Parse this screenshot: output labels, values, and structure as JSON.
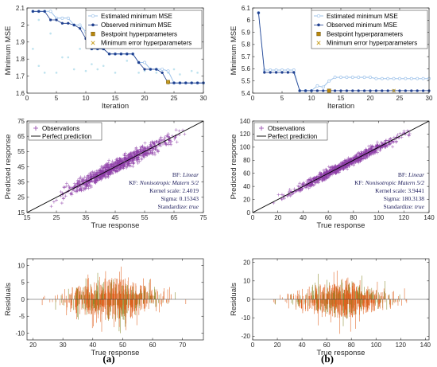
{
  "panel_labels": [
    "(a)",
    "(b)"
  ],
  "chart_data": [
    {
      "id": "a-mse",
      "type": "line",
      "column": "a",
      "xlabel": "Iteration",
      "ylabel": "Minimum MSE",
      "xlim": [
        0,
        30
      ],
      "ylim": [
        1.6,
        2.1
      ],
      "xticks": [
        0,
        5,
        10,
        15,
        20,
        25,
        30
      ],
      "yticks": [
        1.6,
        1.7,
        1.8,
        1.9,
        2.0,
        2.1
      ],
      "ytick_labels": [
        "1.6",
        "1.7",
        "1.8",
        "1.9",
        "2",
        "2.1"
      ],
      "legend_position": "top-right",
      "series": [
        {
          "name": "Estimated minimum MSE",
          "color": "#9fc3ea",
          "marker": "circle-open",
          "x": [
            1,
            2,
            3,
            4,
            5,
            6,
            7,
            8,
            9,
            10,
            11,
            12,
            13,
            14,
            15,
            16,
            17,
            18,
            19,
            20,
            21,
            22,
            23,
            24,
            25,
            26,
            27,
            28,
            29,
            30
          ],
          "y": [
            2.08,
            2.08,
            2.08,
            2.08,
            2.04,
            2.04,
            2.04,
            2.0,
            2.0,
            1.96,
            1.86,
            1.86,
            1.86,
            1.83,
            1.83,
            1.83,
            1.83,
            1.83,
            1.78,
            1.78,
            1.74,
            1.74,
            1.74,
            1.73,
            1.66,
            1.66,
            1.66,
            1.66,
            1.66,
            1.66
          ]
        },
        {
          "name": "Observed minimum MSE",
          "color": "#1f3f8f",
          "marker": "circle-filled",
          "x": [
            1,
            2,
            3,
            4,
            5,
            6,
            7,
            8,
            9,
            10,
            11,
            12,
            13,
            14,
            15,
            16,
            17,
            18,
            19,
            20,
            21,
            22,
            23,
            24,
            25,
            26,
            27,
            28,
            29,
            30
          ],
          "y": [
            2.08,
            2.08,
            2.08,
            2.03,
            2.03,
            2.01,
            2.01,
            2.0,
            1.98,
            1.92,
            1.86,
            1.86,
            1.86,
            1.83,
            1.83,
            1.83,
            1.83,
            1.83,
            1.78,
            1.74,
            1.74,
            1.74,
            1.72,
            1.66,
            1.66,
            1.66,
            1.66,
            1.66,
            1.66,
            1.66
          ]
        },
        {
          "name": "Bestpoint hyperparameters",
          "color": "#b8860b",
          "marker": "square",
          "x": [
            24
          ],
          "y": [
            1.665
          ]
        },
        {
          "name": "Minimum error hyperparameters",
          "color": "#c9a227",
          "marker": "x",
          "x": [
            24
          ],
          "y": [
            1.665
          ]
        }
      ],
      "scatter_noise": {
        "color": "#bfe3ef",
        "points": [
          [
            1,
            1.86
          ],
          [
            2,
            2.03
          ],
          [
            2,
            1.76
          ],
          [
            3,
            1.72
          ],
          [
            4,
            1.95
          ],
          [
            5,
            1.72
          ],
          [
            6,
            1.81
          ],
          [
            7,
            1.81
          ],
          [
            8,
            1.74
          ],
          [
            9,
            1.86
          ],
          [
            10,
            1.73
          ],
          [
            11,
            1.77
          ],
          [
            12,
            1.74
          ],
          [
            13,
            1.76
          ],
          [
            15,
            1.72
          ],
          [
            17,
            1.79
          ],
          [
            19,
            1.72
          ],
          [
            20,
            1.73
          ],
          [
            22,
            1.72
          ],
          [
            24,
            1.72
          ],
          [
            25,
            1.74
          ],
          [
            26,
            1.71
          ],
          [
            28,
            1.73
          ],
          [
            29,
            1.72
          ]
        ]
      }
    },
    {
      "id": "b-mse",
      "type": "line",
      "column": "b",
      "xlabel": "Iteration",
      "ylabel": "Minimum MSE",
      "xlim": [
        0,
        30
      ],
      "ylim": [
        5.4,
        6.1
      ],
      "xticks": [
        0,
        5,
        10,
        15,
        20,
        25,
        30
      ],
      "yticks": [
        5.4,
        5.5,
        5.6,
        5.7,
        5.8,
        5.9,
        6.0,
        6.1
      ],
      "ytick_labels": [
        "5.4",
        "5.5",
        "5.6",
        "5.7",
        "5.8",
        "5.9",
        "6",
        "6.1"
      ],
      "legend_position": "top-right",
      "series": [
        {
          "name": "Estimated minimum MSE",
          "color": "#9fc3ea",
          "marker": "circle-open",
          "x": [
            1,
            2,
            3,
            4,
            5,
            6,
            7,
            8,
            9,
            10,
            11,
            12,
            13,
            14,
            15,
            16,
            17,
            18,
            19,
            20,
            21,
            22,
            23,
            24,
            25,
            26,
            27,
            28,
            29,
            30
          ],
          "y": [
            6.06,
            5.59,
            5.59,
            5.59,
            5.59,
            5.59,
            5.59,
            5.42,
            5.42,
            5.42,
            5.46,
            5.45,
            5.5,
            5.53,
            5.53,
            5.53,
            5.53,
            5.53,
            5.53,
            5.53,
            5.52,
            5.52,
            5.52,
            5.52,
            5.52,
            5.52,
            5.52,
            5.52,
            5.52,
            5.52
          ]
        },
        {
          "name": "Observed minimum MSE",
          "color": "#1f3f8f",
          "marker": "circle-filled",
          "x": [
            1,
            2,
            3,
            4,
            5,
            6,
            7,
            8,
            9,
            10,
            11,
            12,
            13,
            14,
            15,
            16,
            17,
            18,
            19,
            20,
            21,
            22,
            23,
            24,
            25,
            26,
            27,
            28,
            29,
            30
          ],
          "y": [
            6.06,
            5.57,
            5.57,
            5.57,
            5.57,
            5.57,
            5.57,
            5.42,
            5.42,
            5.42,
            5.42,
            5.42,
            5.42,
            5.42,
            5.42,
            5.42,
            5.42,
            5.42,
            5.42,
            5.42,
            5.42,
            5.42,
            5.42,
            5.42,
            5.42,
            5.42,
            5.42,
            5.42,
            5.42,
            5.42
          ]
        },
        {
          "name": "Bestpoint hyperparameters",
          "color": "#b8860b",
          "marker": "square",
          "x": [
            13
          ],
          "y": [
            5.42
          ]
        },
        {
          "name": "Minimum error hyperparameters",
          "color": "#c9a227",
          "marker": "x",
          "x": [
            24
          ],
          "y": [
            5.42
          ]
        }
      ]
    },
    {
      "id": "a-pred",
      "type": "scatter",
      "column": "a",
      "xlabel": "True response",
      "ylabel": "Predicted response",
      "xlim": [
        15,
        75
      ],
      "ylim": [
        15,
        75
      ],
      "xticks": [
        15,
        25,
        35,
        45,
        55,
        65,
        75
      ],
      "yticks": [
        15,
        25,
        35,
        45,
        55,
        65,
        75
      ],
      "legend_position": "top-left",
      "series": [
        {
          "name": "Observations",
          "color": "#8e3fa8",
          "marker": "plus",
          "range": [
            20,
            72
          ],
          "spread": 2.2
        },
        {
          "name": "Perfect prediction",
          "color": "#000000",
          "marker": "line"
        }
      ],
      "annotations": [
        {
          "label": "BF:",
          "value": "Linear"
        },
        {
          "label": "KF:",
          "value": "Nonisotropic Matern 5/2"
        },
        {
          "label": "Kernel scale:",
          "value": "2.4019"
        },
        {
          "label": "Sigma:",
          "value": "0.15343"
        },
        {
          "label": "Standardize:",
          "value": "true"
        }
      ]
    },
    {
      "id": "b-pred",
      "type": "scatter",
      "column": "b",
      "xlabel": "True response",
      "ylabel": "Predicted response",
      "xlim": [
        0,
        140
      ],
      "ylim": [
        0,
        140
      ],
      "xticks": [
        0,
        20,
        40,
        60,
        80,
        100,
        120,
        140
      ],
      "yticks": [
        0,
        20,
        40,
        60,
        80,
        100,
        120,
        140
      ],
      "legend_position": "top-left",
      "series": [
        {
          "name": "Observations",
          "color": "#8e3fa8",
          "marker": "plus",
          "range": [
            12,
            132
          ],
          "spread": 3.4
        },
        {
          "name": "Perfect prediction",
          "color": "#000000",
          "marker": "line"
        }
      ],
      "annotations": [
        {
          "label": "BF:",
          "value": "Linear"
        },
        {
          "label": "KF:",
          "value": "Nonisotropic Matern 5/2"
        },
        {
          "label": "Kernel scale:",
          "value": "3.9441"
        },
        {
          "label": "Sigma:",
          "value": "180.3138"
        },
        {
          "label": "Standardize:",
          "value": "true"
        }
      ]
    },
    {
      "id": "a-resid",
      "type": "bar",
      "column": "a",
      "xlabel": "True response",
      "ylabel": "Residuals",
      "xlim": [
        18,
        77
      ],
      "ylim": [
        -12,
        12
      ],
      "xticks": [
        20,
        30,
        40,
        50,
        60,
        70
      ],
      "yticks": [
        -10,
        -5,
        0,
        5,
        10
      ],
      "series": [
        {
          "name": "",
          "color": "#e0601e",
          "accent_color": "#8a8a2a",
          "range": [
            21,
            72
          ],
          "peak": 11
        }
      ]
    },
    {
      "id": "b-resid",
      "type": "bar",
      "column": "b",
      "xlabel": "True response",
      "ylabel": "Residuals",
      "xlim": [
        0,
        143
      ],
      "ylim": [
        -22,
        22
      ],
      "xticks": [
        0,
        20,
        40,
        60,
        80,
        100,
        120,
        140
      ],
      "yticks": [
        -20,
        -10,
        0,
        10,
        20
      ],
      "series": [
        {
          "name": "",
          "color": "#e0601e",
          "accent_color": "#8a8a2a",
          "range": [
            14,
            132
          ],
          "peak": 18
        }
      ]
    }
  ]
}
